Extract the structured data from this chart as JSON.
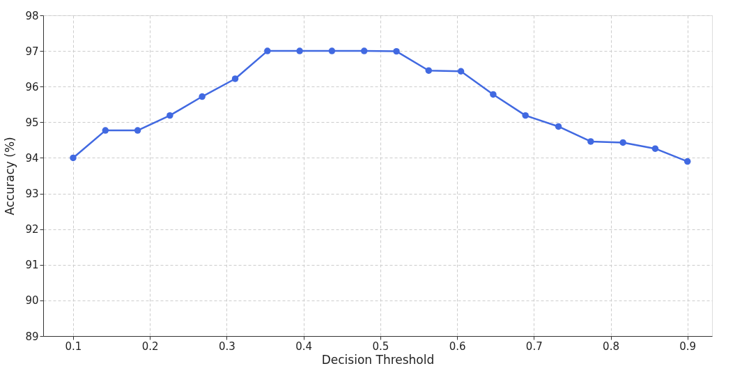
{
  "chart_data": {
    "type": "line",
    "xlabel": "Decision Threshold",
    "ylabel": "Accuracy (%)",
    "x": [
      0.1,
      0.142,
      0.184,
      0.226,
      0.268,
      0.311,
      0.353,
      0.395,
      0.437,
      0.479,
      0.521,
      0.563,
      0.605,
      0.647,
      0.689,
      0.732,
      0.774,
      0.816,
      0.858,
      0.9
    ],
    "series": [
      {
        "color": "#4169e1",
        "values": [
          94.0,
          94.77,
          94.77,
          95.19,
          95.72,
          96.22,
          97.0,
          97.0,
          97.0,
          97.0,
          96.99,
          96.45,
          96.43,
          95.78,
          95.19,
          94.88,
          94.46,
          94.43,
          94.26,
          93.9
        ]
      }
    ],
    "xlim": [
      0.061,
      0.932
    ],
    "ylim": [
      89,
      98
    ],
    "xticks": [
      0.1,
      0.2,
      0.3,
      0.4,
      0.5,
      0.6,
      0.7,
      0.8,
      0.9
    ],
    "yticks": [
      89,
      90,
      91,
      92,
      93,
      94,
      95,
      96,
      97,
      98
    ],
    "grid": true,
    "marker": "circle",
    "line_style": "solid"
  }
}
